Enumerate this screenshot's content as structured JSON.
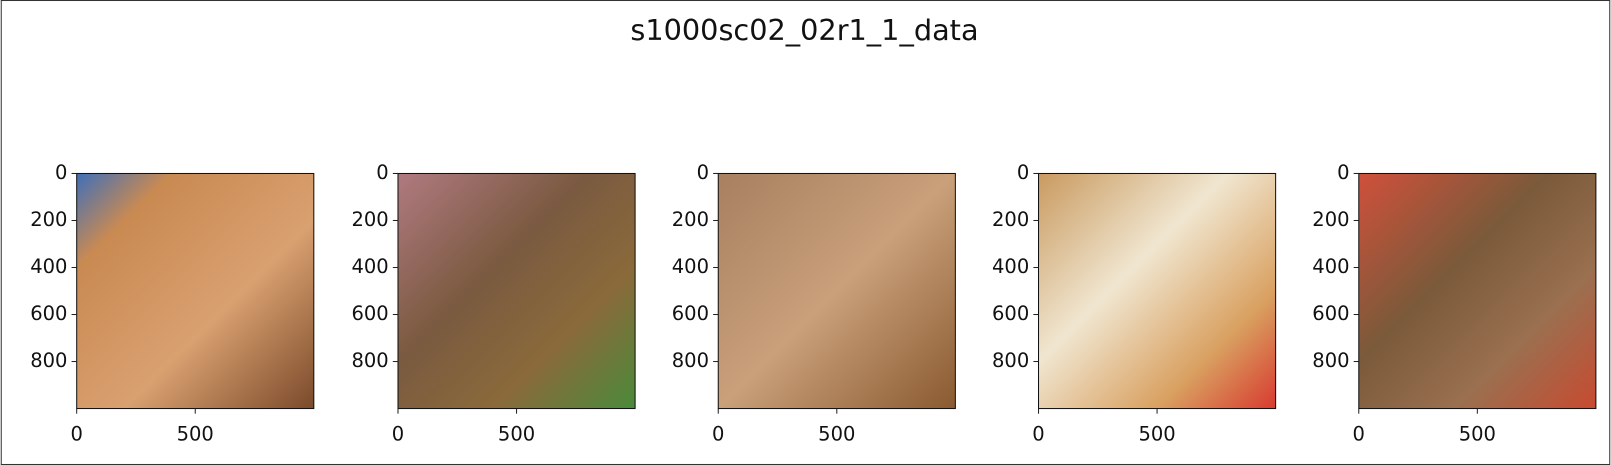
{
  "title": "s1000sc02_02r1_1_data",
  "chart_data": [
    {
      "type": "image",
      "xlim": [
        0,
        1000
      ],
      "ylim": [
        1000,
        0
      ],
      "xticks": [
        0,
        500
      ],
      "yticks": [
        0,
        200,
        400,
        600,
        800
      ]
    },
    {
      "type": "image",
      "xlim": [
        0,
        1000
      ],
      "ylim": [
        1000,
        0
      ],
      "xticks": [
        0,
        500
      ],
      "yticks": [
        0,
        200,
        400,
        600,
        800
      ]
    },
    {
      "type": "image",
      "xlim": [
        0,
        1000
      ],
      "ylim": [
        1000,
        0
      ],
      "xticks": [
        0,
        500
      ],
      "yticks": [
        0,
        200,
        400,
        600,
        800
      ]
    },
    {
      "type": "image",
      "xlim": [
        0,
        1000
      ],
      "ylim": [
        1000,
        0
      ],
      "xticks": [
        0,
        500
      ],
      "yticks": [
        0,
        200,
        400,
        600,
        800
      ]
    },
    {
      "type": "image",
      "xlim": [
        0,
        1000
      ],
      "ylim": [
        1000,
        0
      ],
      "xticks": [
        0,
        500
      ],
      "yticks": [
        0,
        200,
        400,
        600,
        800
      ]
    }
  ]
}
